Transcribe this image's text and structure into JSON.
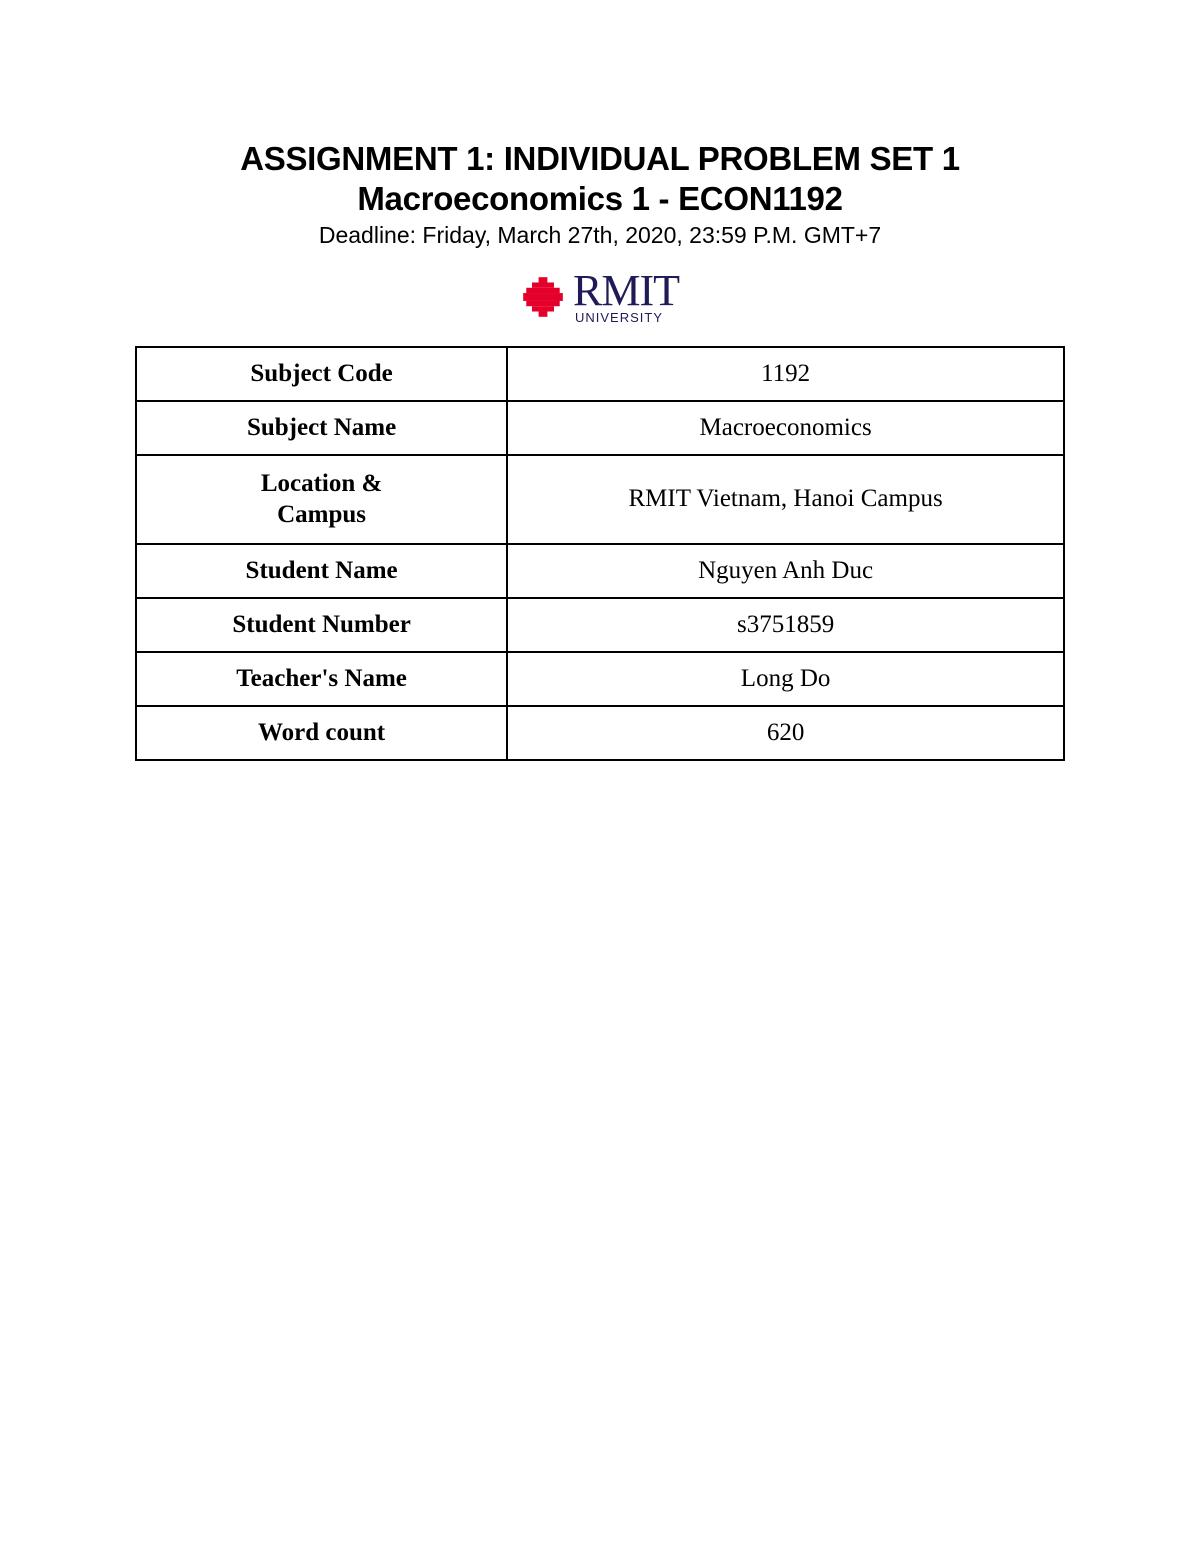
{
  "header": {
    "title_line1": "ASSIGNMENT 1: INDIVIDUAL PROBLEM SET 1",
    "title_line2": "Macroeconomics 1 - ECON1192",
    "deadline": "Deadline: Friday, March 27th, 2020, 23:59 P.M. GMT+7"
  },
  "logo": {
    "mark_color": "#e4002b",
    "text_color": "#1f1b56",
    "name": "RMIT",
    "sub": "UNIVERSITY"
  },
  "table": {
    "type": "table",
    "border_color": "#000000",
    "border_width": 2.5,
    "label_fontsize": 25,
    "value_fontsize": 25,
    "font_family": "Times New Roman",
    "columns": [
      "label",
      "value"
    ],
    "col_widths_pct": [
      40,
      60
    ],
    "rows": [
      {
        "label": "Subject Code",
        "value": "1192"
      },
      {
        "label": "Subject Name",
        "value": "Macroeconomics"
      },
      {
        "label": "Location & Campus",
        "value": "RMIT Vietnam, Hanoi Campus",
        "label_multiline": true
      },
      {
        "label": "Student Name",
        "value": "Nguyen Anh Duc"
      },
      {
        "label": "Student Number",
        "value": "s3751859"
      },
      {
        "label": "Teacher's Name",
        "value": "Long Do"
      },
      {
        "label": "Word count",
        "value": "620"
      }
    ]
  },
  "page_style": {
    "background_color": "#ffffff",
    "text_color": "#000000",
    "title_fontsize": 33,
    "deadline_fontsize": 23
  }
}
